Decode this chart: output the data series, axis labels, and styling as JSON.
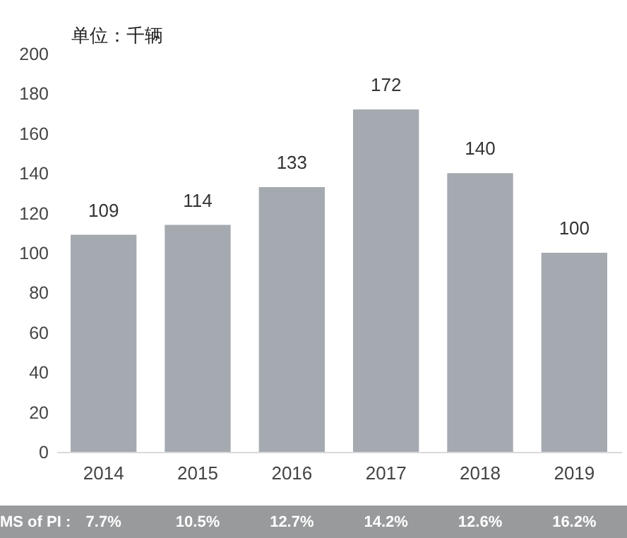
{
  "chart_data": {
    "type": "bar",
    "ylabel": "单位：千辆",
    "categories": [
      "2014",
      "2015",
      "2016",
      "2017",
      "2018",
      "2019"
    ],
    "values": [
      109,
      114,
      133,
      172,
      140,
      100
    ],
    "color": "#a5aab1",
    "ylim": [
      0,
      200
    ],
    "yticks": [
      0,
      20,
      40,
      60,
      80,
      100,
      120,
      140,
      160,
      180,
      200
    ],
    "grid": false,
    "data_labels": true,
    "annotations": [
      "MS of PI :",
      "7.7%",
      "10.5%",
      "12.7%",
      "14.2%",
      "12.6%",
      "16.2%"
    ]
  }
}
